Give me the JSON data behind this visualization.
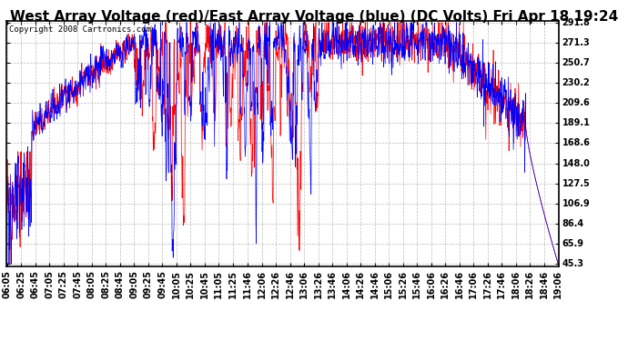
{
  "title": "West Array Voltage (red)/East Array Voltage (blue) (DC Volts) Fri Apr 18 19:24",
  "copyright_text": "Copyright 2008 Cartronics.com",
  "background_color": "#ffffff",
  "plot_bg_color": "#ffffff",
  "grid_color": "#aaaaaa",
  "red_color": "#ff0000",
  "blue_color": "#0000ff",
  "title_fontsize": 11,
  "copyright_fontsize": 6.5,
  "tick_fontsize": 7,
  "ylabel_values": [
    45.3,
    65.9,
    86.4,
    106.9,
    127.5,
    148.0,
    168.6,
    189.1,
    209.6,
    230.2,
    250.7,
    271.3,
    291.8
  ],
  "ymin": 45.3,
  "ymax": 291.8,
  "x_tick_labels": [
    "06:05",
    "06:25",
    "06:45",
    "07:05",
    "07:25",
    "07:45",
    "08:05",
    "08:25",
    "08:45",
    "09:05",
    "09:25",
    "09:45",
    "10:05",
    "10:25",
    "10:45",
    "11:05",
    "11:25",
    "11:46",
    "12:06",
    "12:26",
    "12:46",
    "13:06",
    "13:26",
    "13:46",
    "14:06",
    "14:26",
    "14:46",
    "15:06",
    "15:26",
    "15:46",
    "16:06",
    "16:26",
    "16:46",
    "17:06",
    "17:26",
    "17:46",
    "18:06",
    "18:26",
    "18:46",
    "19:06"
  ]
}
